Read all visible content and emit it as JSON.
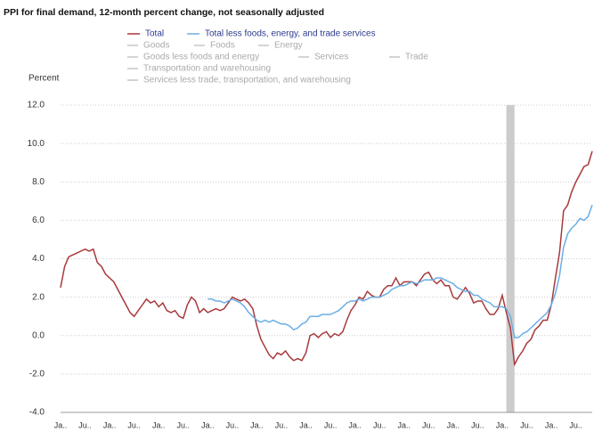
{
  "chart_data": {
    "type": "line",
    "title": "PPI for final demand, 12-month percent change, not seasonally adjusted",
    "y_label": "Percent",
    "categories": [
      "Ja..",
      null,
      null,
      null,
      null,
      null,
      "Ju..",
      null,
      null,
      null,
      null,
      null,
      "Ja..",
      null,
      null,
      null,
      null,
      null,
      "Ju..",
      null,
      null,
      null,
      null,
      null,
      "Ja..",
      null,
      null,
      null,
      null,
      null,
      "Ju..",
      null,
      null,
      null,
      null,
      null,
      "Ja..",
      null,
      null,
      null,
      null,
      null,
      "Ju..",
      null,
      null,
      null,
      null,
      null,
      "Ja..",
      null,
      null,
      null,
      null,
      null,
      "Ju..",
      null,
      null,
      null,
      null,
      null,
      "Ja..",
      null,
      null,
      null,
      null,
      null,
      "Ju..",
      null,
      null,
      null,
      null,
      null,
      "Ja..",
      null,
      null,
      null,
      null,
      null,
      "Ju..",
      null,
      null,
      null,
      null,
      null,
      "Ja..",
      null,
      null,
      null,
      null,
      null,
      "Ju..",
      null,
      null,
      null,
      null,
      null,
      "Ja..",
      null,
      null,
      null,
      null,
      null,
      "Ju..",
      null,
      null,
      null,
      null,
      null,
      "Ja..",
      null,
      null,
      null,
      null,
      null,
      "Ju..",
      null,
      null,
      null,
      null,
      null,
      "Ja..",
      null,
      null,
      null,
      null,
      null,
      "Ju..",
      null,
      null,
      null,
      null
    ],
    "series": [
      {
        "name": "Total",
        "color": "#a8393c",
        "values": [
          2.5,
          3.6,
          4.1,
          4.2,
          4.3,
          4.4,
          4.5,
          4.4,
          4.5,
          3.8,
          3.6,
          3.2,
          3.0,
          2.8,
          2.4,
          2.0,
          1.6,
          1.2,
          1.0,
          1.3,
          1.6,
          1.9,
          1.7,
          1.8,
          1.5,
          1.7,
          1.3,
          1.2,
          1.3,
          1.0,
          0.9,
          1.6,
          2.0,
          1.8,
          1.2,
          1.4,
          1.2,
          1.3,
          1.4,
          1.3,
          1.4,
          1.7,
          2.0,
          1.9,
          1.8,
          1.9,
          1.7,
          1.4,
          0.5,
          -0.2,
          -0.6,
          -1.0,
          -1.2,
          -0.9,
          -1.0,
          -0.8,
          -1.1,
          -1.3,
          -1.2,
          -1.3,
          -0.9,
          0.0,
          0.1,
          -0.1,
          0.1,
          0.2,
          -0.1,
          0.1,
          0.0,
          0.2,
          0.8,
          1.3,
          1.6,
          2.0,
          1.9,
          2.3,
          2.1,
          2.0,
          2.0,
          2.4,
          2.6,
          2.6,
          3.0,
          2.6,
          2.8,
          2.8,
          2.8,
          2.6,
          2.9,
          3.2,
          3.3,
          2.9,
          2.7,
          2.9,
          2.6,
          2.6,
          2.0,
          1.9,
          2.2,
          2.5,
          2.2,
          1.7,
          1.8,
          1.8,
          1.4,
          1.1,
          1.1,
          1.4,
          2.1,
          1.2,
          0.4,
          -1.5,
          -1.1,
          -0.8,
          -0.4,
          -0.2,
          0.3,
          0.5,
          0.8,
          0.8,
          1.6,
          3.0,
          4.3,
          6.5,
          6.8,
          7.5,
          8.0,
          8.4,
          8.8,
          8.9,
          9.6
        ]
      },
      {
        "name": "Total less foods, energy, and trade services",
        "color": "#6aaee6",
        "values": [
          null,
          null,
          null,
          null,
          null,
          null,
          null,
          null,
          null,
          null,
          null,
          null,
          null,
          null,
          null,
          null,
          null,
          null,
          null,
          null,
          null,
          null,
          null,
          null,
          null,
          null,
          null,
          null,
          null,
          null,
          null,
          null,
          null,
          null,
          null,
          null,
          1.9,
          1.9,
          1.8,
          1.8,
          1.7,
          1.8,
          1.9,
          1.8,
          1.7,
          1.5,
          1.2,
          1.0,
          0.8,
          0.7,
          0.8,
          0.7,
          0.8,
          0.7,
          0.6,
          0.6,
          0.5,
          0.3,
          0.4,
          0.6,
          0.7,
          1.0,
          1.0,
          1.0,
          1.1,
          1.1,
          1.1,
          1.2,
          1.3,
          1.5,
          1.7,
          1.8,
          1.8,
          1.9,
          1.8,
          1.9,
          2.0,
          2.0,
          2.0,
          2.1,
          2.2,
          2.4,
          2.5,
          2.6,
          2.6,
          2.7,
          2.8,
          2.7,
          2.8,
          2.9,
          2.9,
          2.9,
          3.0,
          3.0,
          2.9,
          2.8,
          2.7,
          2.5,
          2.4,
          2.3,
          2.3,
          2.1,
          2.1,
          1.9,
          1.8,
          1.7,
          1.5,
          1.5,
          1.5,
          1.4,
          1.0,
          -0.1,
          -0.1,
          0.1,
          0.2,
          0.4,
          0.6,
          0.8,
          1.0,
          1.2,
          1.6,
          2.2,
          3.1,
          4.6,
          5.3,
          5.6,
          5.8,
          6.1,
          6.0,
          6.2,
          6.8
        ]
      }
    ],
    "legend_inactive": [
      {
        "name": "Goods",
        "color": "#aaaaaa"
      },
      {
        "name": "Foods",
        "color": "#aaaaaa"
      },
      {
        "name": "Energy",
        "color": "#aaaaaa"
      },
      {
        "name": "Goods less foods and energy",
        "color": "#aaaaaa"
      },
      {
        "name": "Services",
        "color": "#aaaaaa"
      },
      {
        "name": "Trade",
        "color": "#aaaaaa"
      },
      {
        "name": "Transportation and warehousing",
        "color": "#aaaaaa"
      },
      {
        "name": "Services less trade, transportation, and warehousing",
        "color": "#aaaaaa"
      }
    ],
    "recession": {
      "start": 109,
      "end": 111,
      "color": "#cccccc"
    },
    "ylim": [
      -4,
      12
    ],
    "yticks": [
      {
        "value": -4,
        "label": "-4.0"
      },
      {
        "value": -2,
        "label": "-2.0"
      },
      {
        "value": 0,
        "label": "0.0"
      },
      {
        "value": 2,
        "label": "2.0"
      },
      {
        "value": 4,
        "label": "4.0"
      },
      {
        "value": 6,
        "label": "6.0"
      },
      {
        "value": 8,
        "label": "8.0"
      },
      {
        "value": 10,
        "label": "10.0"
      },
      {
        "value": 12,
        "label": "12.0"
      }
    ],
    "grid": true
  }
}
